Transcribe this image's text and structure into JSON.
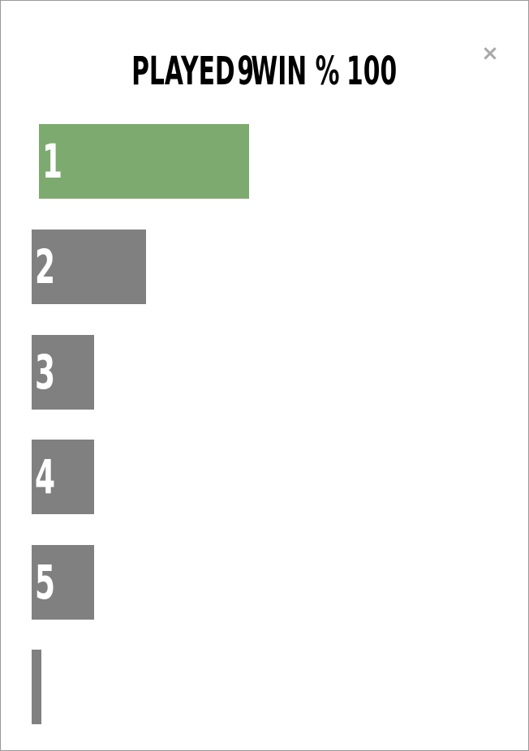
{
  "header": {
    "played_label": "PLAYED",
    "played_value": "9",
    "win_label": "WIN %",
    "win_value": "100",
    "close_glyph": "×",
    "close_icon": "close-icon"
  },
  "distribution": [
    {
      "guess": "1",
      "count": 4,
      "highlight": true
    },
    {
      "guess": "2",
      "count": 2,
      "highlight": false
    },
    {
      "guess": "3",
      "count": 1,
      "highlight": false
    },
    {
      "guess": "4",
      "count": 1,
      "highlight": false
    },
    {
      "guess": "5",
      "count": 1,
      "highlight": false
    },
    {
      "guess": "",
      "count": 0,
      "highlight": false
    }
  ],
  "colors": {
    "win_bar": "#7daa6e",
    "bar": "#808080",
    "close": "#a8a8a8"
  }
}
